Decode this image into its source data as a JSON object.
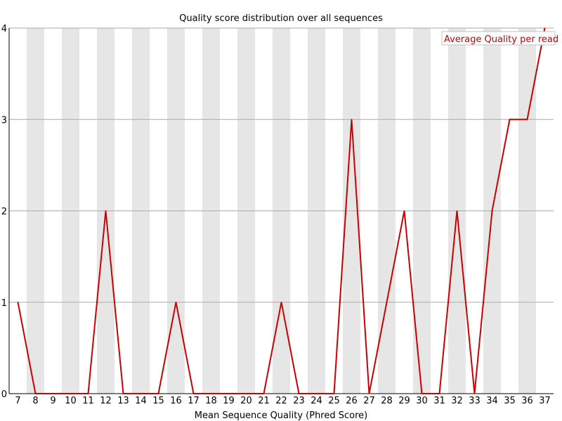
{
  "chart_data": {
    "type": "line",
    "title": "Quality score distribution over all sequences",
    "xlabel": "Mean Sequence Quality (Phred Score)",
    "ylabel": "",
    "x": [
      7,
      8,
      9,
      10,
      11,
      12,
      13,
      14,
      15,
      16,
      17,
      18,
      19,
      20,
      21,
      22,
      23,
      24,
      25,
      26,
      27,
      28,
      29,
      30,
      31,
      32,
      33,
      34,
      35,
      36,
      37
    ],
    "xticks": [
      "7",
      "8",
      "9",
      "10",
      "11",
      "12",
      "13",
      "14",
      "15",
      "16",
      "17",
      "18",
      "19",
      "20",
      "21",
      "22",
      "23",
      "24",
      "25",
      "26",
      "27",
      "28",
      "29",
      "30",
      "31",
      "32",
      "33",
      "34",
      "35",
      "36",
      "37"
    ],
    "yticks": [
      "0",
      "1",
      "2",
      "3",
      "4"
    ],
    "ylim": [
      0,
      4
    ],
    "grid": true,
    "alternating_bands": true,
    "legend_position": "top-right",
    "series": [
      {
        "name": "Average Quality per read",
        "color": "#cc0000",
        "values": [
          1,
          0,
          0,
          0,
          0,
          2,
          0,
          0,
          0,
          1,
          0,
          0,
          0,
          0,
          0,
          1,
          0,
          0,
          0,
          3,
          0,
          1,
          2,
          0,
          0,
          2,
          0,
          2,
          3,
          3,
          4
        ]
      }
    ],
    "colors": {
      "band": "#e6e6e6",
      "grid": "#aaaaaa",
      "axis": "#000000"
    }
  }
}
